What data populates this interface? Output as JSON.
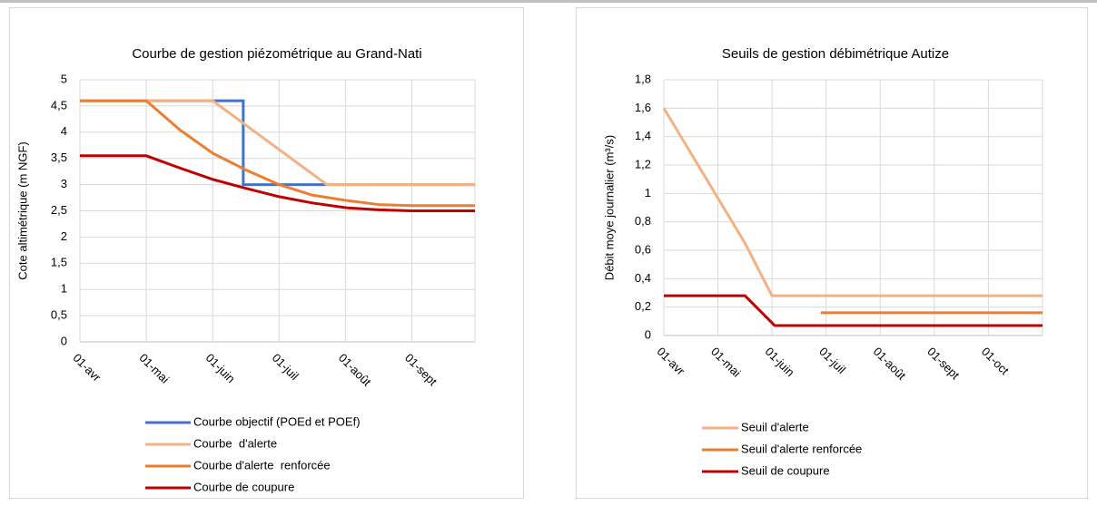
{
  "chart_data": [
    {
      "type": "line",
      "title": "Courbe de gestion piézométrique au Grand-Nati",
      "y_label": "Cote altimétrique (m NGF)",
      "xlim": [
        0,
        5.95
      ],
      "ylim": [
        0,
        5
      ],
      "grid": true,
      "legend": "bottom",
      "xticks": [
        {
          "value": 0,
          "label": "01-avr"
        },
        {
          "value": 1,
          "label": "01-mai"
        },
        {
          "value": 2,
          "label": "01-juin"
        },
        {
          "value": 3,
          "label": "01-juil"
        },
        {
          "value": 4,
          "label": "01-août"
        },
        {
          "value": 5,
          "label": "01-sept"
        }
      ],
      "yticks": [
        0,
        {
          "value": 0.5,
          "label": "0,5"
        },
        1,
        {
          "value": 1.5,
          "label": "1,5"
        },
        2,
        {
          "value": 2.5,
          "label": "2,5"
        },
        3,
        {
          "value": 3.5,
          "label": "3,5"
        },
        4,
        {
          "value": 4.5,
          "label": "4,5"
        },
        5
      ],
      "series": [
        {
          "name": "Courbe objectif (POEd et POEf)",
          "color": "#4472c4",
          "x": [
            0,
            2.46,
            2.46,
            5.95
          ],
          "values": [
            4.6,
            4.6,
            3,
            3
          ]
        },
        {
          "name": "Courbe  d'alerte",
          "color": "#f4b183",
          "x": [
            0,
            2,
            3.72,
            5.95
          ],
          "values": [
            4.6,
            4.6,
            3,
            3
          ]
        },
        {
          "name": "Courbe d'alerte  renforcée",
          "color": "#ed7d31",
          "x": [
            0,
            1,
            1.5,
            2,
            2.5,
            3,
            3.5,
            4,
            4.5,
            5,
            5.95
          ],
          "values": [
            4.6,
            4.6,
            4.05,
            3.6,
            3.28,
            3,
            2.8,
            2.7,
            2.62,
            2.6,
            2.6
          ]
        },
        {
          "name": "Courbe de coupure",
          "color": "#c00000",
          "x": [
            0,
            1,
            1.5,
            2,
            2.5,
            3,
            3.5,
            4,
            4.5,
            5,
            5.95
          ],
          "values": [
            3.55,
            3.55,
            3.32,
            3.1,
            2.93,
            2.77,
            2.65,
            2.56,
            2.52,
            2.5,
            2.5
          ]
        }
      ]
    },
    {
      "type": "line",
      "title": "Seuils de gestion débimétrique Autize",
      "y_label": "Débit moye journalier (m³/s)",
      "xlim": [
        0,
        7
      ],
      "ylim": [
        0,
        1.8
      ],
      "grid": true,
      "legend": "bottom",
      "xticks": [
        {
          "value": 0,
          "label": "01-avr"
        },
        {
          "value": 1,
          "label": "01-mai"
        },
        {
          "value": 2,
          "label": "01-juin"
        },
        {
          "value": 3,
          "label": "01-juil"
        },
        {
          "value": 4,
          "label": "01-août"
        },
        {
          "value": 5,
          "label": "01-sept"
        },
        {
          "value": 6,
          "label": "01-oct"
        }
      ],
      "yticks": [
        0,
        {
          "value": 0.2,
          "label": "0,2"
        },
        {
          "value": 0.4,
          "label": "0,4"
        },
        {
          "value": 0.6,
          "label": "0,6"
        },
        {
          "value": 0.8,
          "label": "0,8"
        },
        1,
        {
          "value": 1.2,
          "label": "1,2"
        },
        {
          "value": 1.4,
          "label": "1,4"
        },
        {
          "value": 1.6,
          "label": "1,6"
        },
        {
          "value": 1.8,
          "label": "1,8"
        }
      ],
      "series": [
        {
          "name": "Seuil d'alerte",
          "color": "#f4b183",
          "x": [
            0,
            1.5,
            2,
            7
          ],
          "values": [
            1.6,
            0.65,
            0.28,
            0.28
          ]
        },
        {
          "name": "Seuil d'alerte renforcée",
          "color": "#ed7d31",
          "x": [
            2.9,
            7
          ],
          "values": [
            0.16,
            0.16
          ]
        },
        {
          "name": "Seuil de coupure",
          "color": "#c00000",
          "x": [
            0,
            1.5,
            2.05,
            7
          ],
          "values": [
            0.28,
            0.28,
            0.07,
            0.07
          ]
        }
      ]
    }
  ]
}
